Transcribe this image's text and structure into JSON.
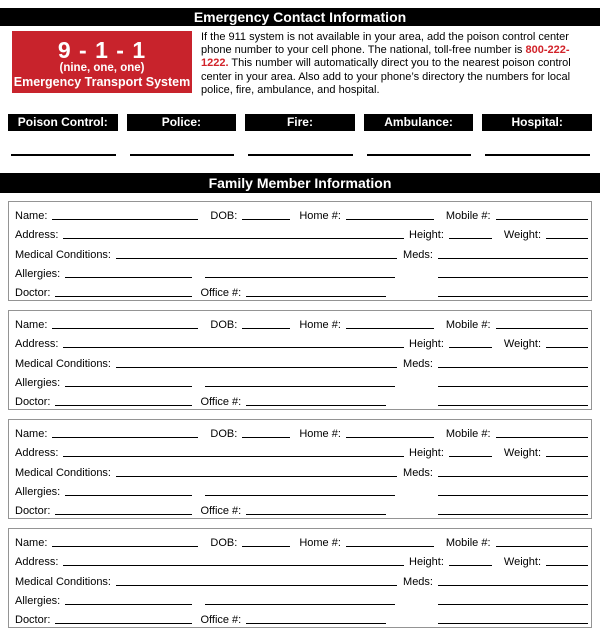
{
  "headers": {
    "emergency": "Emergency Contact Information",
    "family": "Family Member Information"
  },
  "emergency_banner": {
    "number": "9 - 1 - 1",
    "number_words": "(nine, one, one)",
    "subtitle": "Emergency Transport System",
    "bg_color": "#c8232c"
  },
  "info_paragraph": {
    "text_before": "If the 911 system is not available in your area, add the poison control center phone number to your cell phone. The national, toll-free number is ",
    "phone": "800-222-1222.",
    "text_after": " This number will automatically direct you to the nearest poison control center in your area. Also add to your phone’s directory the numbers for local police, fire, ambulance, and hospital.",
    "phone_color": "#d2232a"
  },
  "contacts": {
    "items": [
      {
        "label": "Poison Control:"
      },
      {
        "label": "Police:"
      },
      {
        "label": "Fire:"
      },
      {
        "label": "Ambulance:"
      },
      {
        "label": "Hospital:"
      }
    ]
  },
  "family_form": {
    "member_count": 4,
    "labels": {
      "name": "Name:",
      "dob": "DOB:",
      "home": "Home #:",
      "mobile": "Mobile #:",
      "address": "Address:",
      "height": "Height:",
      "weight": "Weight:",
      "medical": "Medical Conditions:",
      "meds": "Meds:",
      "allergies": "Allergies:",
      "doctor": "Doctor:",
      "office": "Office #:"
    }
  }
}
